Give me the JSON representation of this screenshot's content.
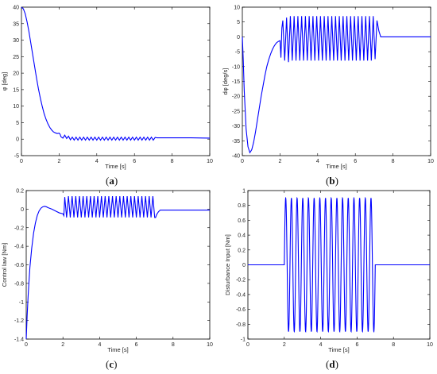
{
  "chart_data": [
    {
      "id": "a",
      "type": "line",
      "caption": {
        "open": "(",
        "letter": "a",
        "close": ")"
      },
      "xlabel": "Time [s]",
      "ylabel": "φ [deg]",
      "xlim": [
        0,
        10
      ],
      "ylim": [
        -5,
        40
      ],
      "xticks": [
        0,
        2,
        4,
        6,
        8,
        10
      ],
      "yticks": [
        -5,
        0,
        5,
        10,
        15,
        20,
        25,
        30,
        35,
        40
      ],
      "grid": false,
      "color": "#0000ff",
      "series": [
        {
          "x": [
            0,
            0.1,
            0.2,
            0.3,
            0.4,
            0.5,
            0.6,
            0.7,
            0.8,
            0.9,
            1.0,
            1.1,
            1.2,
            1.3,
            1.4,
            1.5,
            1.6,
            1.7,
            1.8,
            1.9,
            2.0,
            2.05,
            2.1,
            2.2,
            2.3,
            2.4,
            2.5,
            2.6,
            2.7,
            2.8,
            2.9,
            3.0,
            3.1,
            3.2,
            3.3,
            3.4,
            3.5,
            3.6,
            3.7,
            3.8,
            3.9,
            4.0,
            4.1,
            4.2,
            4.3,
            4.4,
            4.5,
            4.6,
            4.7,
            4.8,
            4.9,
            5.0,
            5.1,
            5.2,
            5.3,
            5.4,
            5.5,
            5.6,
            5.7,
            5.8,
            5.9,
            6.0,
            6.1,
            6.2,
            6.3,
            6.4,
            6.5,
            6.6,
            6.7,
            6.8,
            6.9,
            7.0,
            7.1,
            7.2,
            8.0,
            9.0,
            10.0
          ],
          "y": [
            40,
            39.5,
            38,
            35.5,
            32.5,
            29,
            25.5,
            22,
            18.5,
            15.3,
            12.5,
            10,
            7.8,
            6.1,
            4.7,
            3.6,
            2.8,
            2.2,
            1.9,
            1.7,
            1.8,
            1.5,
            0.7,
            0.3,
            1.2,
            0.2,
            0.9,
            -0.2,
            0.6,
            -0.3,
            0.6,
            -0.3,
            0.6,
            -0.3,
            0.6,
            -0.3,
            0.6,
            -0.3,
            0.6,
            -0.3,
            0.6,
            -0.3,
            0.6,
            -0.3,
            0.6,
            -0.3,
            0.6,
            -0.3,
            0.6,
            -0.3,
            0.6,
            -0.3,
            0.6,
            -0.3,
            0.6,
            -0.3,
            0.6,
            -0.3,
            0.6,
            -0.3,
            0.6,
            -0.3,
            0.6,
            -0.3,
            0.6,
            -0.3,
            0.6,
            -0.3,
            0.6,
            -0.3,
            0.6,
            -0.3,
            0.5,
            0.4,
            0.4,
            0.4,
            0.3
          ]
        }
      ]
    },
    {
      "id": "b",
      "type": "line",
      "caption": {
        "open": "(",
        "letter": "b",
        "close": ")"
      },
      "xlabel": "Time [s]",
      "ylabel": "dφ [deg/s]",
      "xlim": [
        0,
        10
      ],
      "ylim": [
        -40,
        10
      ],
      "xticks": [
        0,
        2,
        4,
        6,
        8,
        10
      ],
      "yticks": [
        -40,
        -35,
        -30,
        -25,
        -20,
        -15,
        -10,
        -5,
        0,
        5,
        10
      ],
      "grid": false,
      "color": "#0000ff",
      "series": [
        {
          "x": [
            0,
            0.05,
            0.1,
            0.2,
            0.3,
            0.4,
            0.5,
            0.6,
            0.7,
            0.8,
            0.9,
            1.0,
            1.1,
            1.2,
            1.3,
            1.4,
            1.5,
            1.6,
            1.7,
            1.8,
            1.9,
            2.0,
            2.05,
            2.1,
            2.15,
            2.25,
            2.35,
            2.45,
            2.55,
            2.65,
            2.75,
            2.85,
            2.95,
            3.05,
            3.15,
            3.25,
            3.35,
            3.45,
            3.55,
            3.65,
            3.75,
            3.85,
            3.95,
            4.05,
            4.15,
            4.25,
            4.35,
            4.45,
            4.55,
            4.65,
            4.75,
            4.85,
            4.95,
            5.05,
            5.15,
            5.25,
            5.35,
            5.45,
            5.55,
            5.65,
            5.75,
            5.85,
            5.95,
            6.05,
            6.15,
            6.25,
            6.35,
            6.45,
            6.55,
            6.65,
            6.75,
            6.85,
            6.95,
            7.05,
            7.15,
            7.25,
            7.35,
            8.0,
            9.0,
            10.0
          ],
          "y": [
            0,
            -8,
            -18,
            -31,
            -37,
            -39,
            -38,
            -35.5,
            -32,
            -28,
            -24,
            -20,
            -16.5,
            -13,
            -10,
            -7.7,
            -5.8,
            -4.2,
            -3,
            -2.1,
            -1.6,
            -1.3,
            -7,
            3,
            5.5,
            -8,
            6.5,
            -8.5,
            7,
            -8,
            7,
            -8,
            7,
            -8,
            7,
            -8,
            7,
            -8,
            7,
            -8,
            7,
            -8,
            7,
            -8,
            7,
            -8,
            7,
            -8,
            7,
            -8,
            7,
            -8,
            7,
            -8,
            7,
            -8,
            7,
            -8,
            7,
            -8,
            7,
            -8,
            7,
            -8,
            7,
            -8,
            7,
            -8,
            7,
            -8,
            7,
            -8,
            7,
            -7.5,
            5.5,
            2,
            0,
            0,
            0,
            0
          ]
        }
      ]
    },
    {
      "id": "c",
      "type": "line",
      "caption": {
        "open": "(",
        "letter": "c",
        "close": ")"
      },
      "xlabel": "Time [s]",
      "ylabel": "Control law [Nm]",
      "xlim": [
        0,
        10
      ],
      "ylim": [
        -1.4,
        0.2
      ],
      "xticks": [
        0,
        2,
        4,
        6,
        8,
        10
      ],
      "yticks": [
        -1.4,
        -1.2,
        -1.0,
        -0.8,
        -0.6,
        -0.4,
        -0.2,
        0,
        0.2
      ],
      "ytick_labels": [
        "-1.4",
        "-1.2",
        "-1",
        "-0.8",
        "-0.6",
        "-0.4",
        "-0.2",
        "0",
        "0.2"
      ],
      "grid": false,
      "color": "#0000ff",
      "series": [
        {
          "x": [
            0,
            0.05,
            0.1,
            0.15,
            0.2,
            0.3,
            0.4,
            0.5,
            0.6,
            0.7,
            0.8,
            0.9,
            1.0,
            1.1,
            1.2,
            1.4,
            1.6,
            1.8,
            2.0,
            2.05,
            2.1,
            2.2,
            2.3,
            2.4,
            2.5,
            2.6,
            2.7,
            2.8,
            2.9,
            3.0,
            3.1,
            3.2,
            3.3,
            3.4,
            3.5,
            3.6,
            3.7,
            3.8,
            3.9,
            4.0,
            4.1,
            4.2,
            4.3,
            4.4,
            4.5,
            4.6,
            4.7,
            4.8,
            4.9,
            5.0,
            5.1,
            5.2,
            5.3,
            5.4,
            5.5,
            5.6,
            5.7,
            5.8,
            5.9,
            6.0,
            6.1,
            6.2,
            6.3,
            6.4,
            6.5,
            6.6,
            6.7,
            6.8,
            6.9,
            7.0,
            7.05,
            7.1,
            7.2,
            7.3,
            7.5,
            8.0,
            9.0,
            10.0
          ],
          "y": [
            -1.4,
            -1.15,
            -0.95,
            -0.78,
            -0.63,
            -0.42,
            -0.26,
            -0.15,
            -0.07,
            -0.02,
            0.01,
            0.025,
            0.03,
            0.025,
            0.015,
            0.0,
            -0.02,
            -0.04,
            -0.05,
            -0.07,
            0.13,
            -0.09,
            0.14,
            -0.09,
            0.14,
            -0.09,
            0.14,
            -0.09,
            0.14,
            -0.09,
            0.14,
            -0.09,
            0.14,
            -0.09,
            0.14,
            -0.09,
            0.14,
            -0.09,
            0.14,
            -0.09,
            0.14,
            -0.09,
            0.14,
            -0.09,
            0.14,
            -0.09,
            0.14,
            -0.09,
            0.14,
            -0.09,
            0.14,
            -0.09,
            0.14,
            -0.09,
            0.14,
            -0.09,
            0.14,
            -0.09,
            0.14,
            -0.09,
            0.14,
            -0.09,
            0.14,
            -0.09,
            0.14,
            -0.09,
            0.14,
            -0.09,
            0.14,
            -0.09,
            -0.09,
            -0.06,
            -0.03,
            -0.01,
            -0.01,
            -0.01,
            -0.01,
            -0.01
          ]
        }
      ]
    },
    {
      "id": "d",
      "type": "line",
      "caption": {
        "open": "(",
        "letter": "d",
        "close": ")"
      },
      "xlabel": "Time [s]",
      "ylabel": "Disturbance Input [Nm]",
      "xlim": [
        0,
        10
      ],
      "ylim": [
        -1,
        1
      ],
      "xticks": [
        0,
        2,
        4,
        6,
        8,
        10
      ],
      "yticks": [
        -1,
        -0.8,
        -0.6,
        -0.4,
        -0.2,
        0,
        0.2,
        0.4,
        0.6,
        0.8,
        1
      ],
      "ytick_labels": [
        "-1",
        "-0.8",
        "-0.6",
        "-0.4",
        "-0.2",
        "0",
        "0.2",
        "0.4",
        "0.6",
        "0.8",
        "1"
      ],
      "grid": false,
      "color": "#0000ff",
      "disturbance": {
        "amplitude": 0.9,
        "start": 2,
        "end": 7,
        "cycles": 16
      }
    }
  ]
}
